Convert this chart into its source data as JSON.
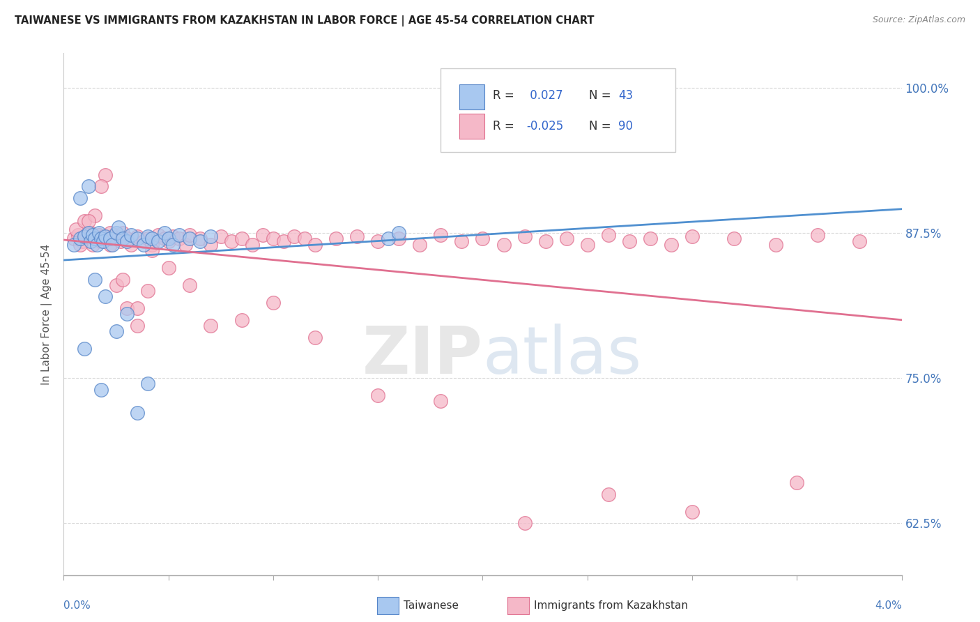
{
  "title": "TAIWANESE VS IMMIGRANTS FROM KAZAKHSTAN IN LABOR FORCE | AGE 45-54 CORRELATION CHART",
  "source": "Source: ZipAtlas.com",
  "ylabel": "In Labor Force | Age 45-54",
  "xlim": [
    0.0,
    4.0
  ],
  "ylim": [
    58.0,
    103.0
  ],
  "yticks": [
    62.5,
    75.0,
    87.5,
    100.0
  ],
  "ytick_labels": [
    "62.5%",
    "75.0%",
    "87.5%",
    "100.0%"
  ],
  "color_blue": "#a8c8f0",
  "color_blue_edge": "#5585c8",
  "color_blue_line": "#5090d0",
  "color_pink": "#f5b8c8",
  "color_pink_edge": "#e07090",
  "color_pink_line": "#e07090",
  "watermark": "ZIPatlas",
  "watermark_color": "#d8d8d8",
  "grid_color": "#d8d8d8",
  "spine_color": "#cccccc",
  "title_color": "#222222",
  "source_color": "#888888",
  "ylabel_color": "#555555",
  "blue_x": [
    0.05,
    0.08,
    0.1,
    0.12,
    0.13,
    0.14,
    0.15,
    0.16,
    0.17,
    0.18,
    0.19,
    0.2,
    0.22,
    0.23,
    0.25,
    0.26,
    0.28,
    0.3,
    0.32,
    0.35,
    0.38,
    0.4,
    0.42,
    0.45,
    0.48,
    0.5,
    0.52,
    0.55,
    0.6,
    0.65,
    0.7,
    0.08,
    0.12,
    0.15,
    0.2,
    0.25,
    0.3,
    0.35,
    0.4,
    0.1,
    0.18,
    1.55,
    1.6
  ],
  "blue_y": [
    86.5,
    87.0,
    87.2,
    87.5,
    86.8,
    87.3,
    87.0,
    86.5,
    87.5,
    87.0,
    86.8,
    87.2,
    87.0,
    86.5,
    87.5,
    88.0,
    87.0,
    86.8,
    87.3,
    87.0,
    86.5,
    87.2,
    87.0,
    86.8,
    87.5,
    87.0,
    86.5,
    87.3,
    87.0,
    86.8,
    87.2,
    90.5,
    91.5,
    83.5,
    82.0,
    79.0,
    80.5,
    72.0,
    74.5,
    77.5,
    74.0,
    87.0,
    87.5
  ],
  "pink_x": [
    0.05,
    0.07,
    0.09,
    0.11,
    0.13,
    0.14,
    0.16,
    0.17,
    0.18,
    0.19,
    0.2,
    0.22,
    0.24,
    0.25,
    0.27,
    0.28,
    0.3,
    0.32,
    0.35,
    0.38,
    0.4,
    0.42,
    0.45,
    0.48,
    0.5,
    0.52,
    0.55,
    0.58,
    0.6,
    0.65,
    0.7,
    0.75,
    0.8,
    0.85,
    0.9,
    0.95,
    1.0,
    1.05,
    1.1,
    1.15,
    1.2,
    1.3,
    1.4,
    1.5,
    1.6,
    1.7,
    1.8,
    1.9,
    2.0,
    2.1,
    2.2,
    2.3,
    2.4,
    2.5,
    2.6,
    2.7,
    2.8,
    2.9,
    3.0,
    3.2,
    3.4,
    3.6,
    3.8,
    0.06,
    0.1,
    0.15,
    0.2,
    0.25,
    0.3,
    0.35,
    0.4,
    0.08,
    0.12,
    0.18,
    0.22,
    0.28,
    0.35,
    0.42,
    0.5,
    0.6,
    0.7,
    0.85,
    1.0,
    1.2,
    1.5,
    1.8,
    2.2,
    2.6,
    3.0,
    3.5
  ],
  "pink_y": [
    87.0,
    87.3,
    86.8,
    87.2,
    87.5,
    86.5,
    87.0,
    87.3,
    86.8,
    87.2,
    87.0,
    86.5,
    87.3,
    87.0,
    86.8,
    87.5,
    87.0,
    86.5,
    87.2,
    86.8,
    87.0,
    86.5,
    87.3,
    87.0,
    86.8,
    87.2,
    87.0,
    86.5,
    87.3,
    87.0,
    86.5,
    87.2,
    86.8,
    87.0,
    86.5,
    87.3,
    87.0,
    86.8,
    87.2,
    87.0,
    86.5,
    87.0,
    87.2,
    86.8,
    87.0,
    86.5,
    87.3,
    86.8,
    87.0,
    86.5,
    87.2,
    86.8,
    87.0,
    86.5,
    87.3,
    86.8,
    87.0,
    86.5,
    87.2,
    87.0,
    86.5,
    87.3,
    86.8,
    87.8,
    88.5,
    89.0,
    92.5,
    83.0,
    81.0,
    79.5,
    82.5,
    86.5,
    88.5,
    91.5,
    87.5,
    83.5,
    81.0,
    86.0,
    84.5,
    83.0,
    79.5,
    80.0,
    81.5,
    78.5,
    73.5,
    73.0,
    62.5,
    65.0,
    63.5,
    66.0
  ]
}
